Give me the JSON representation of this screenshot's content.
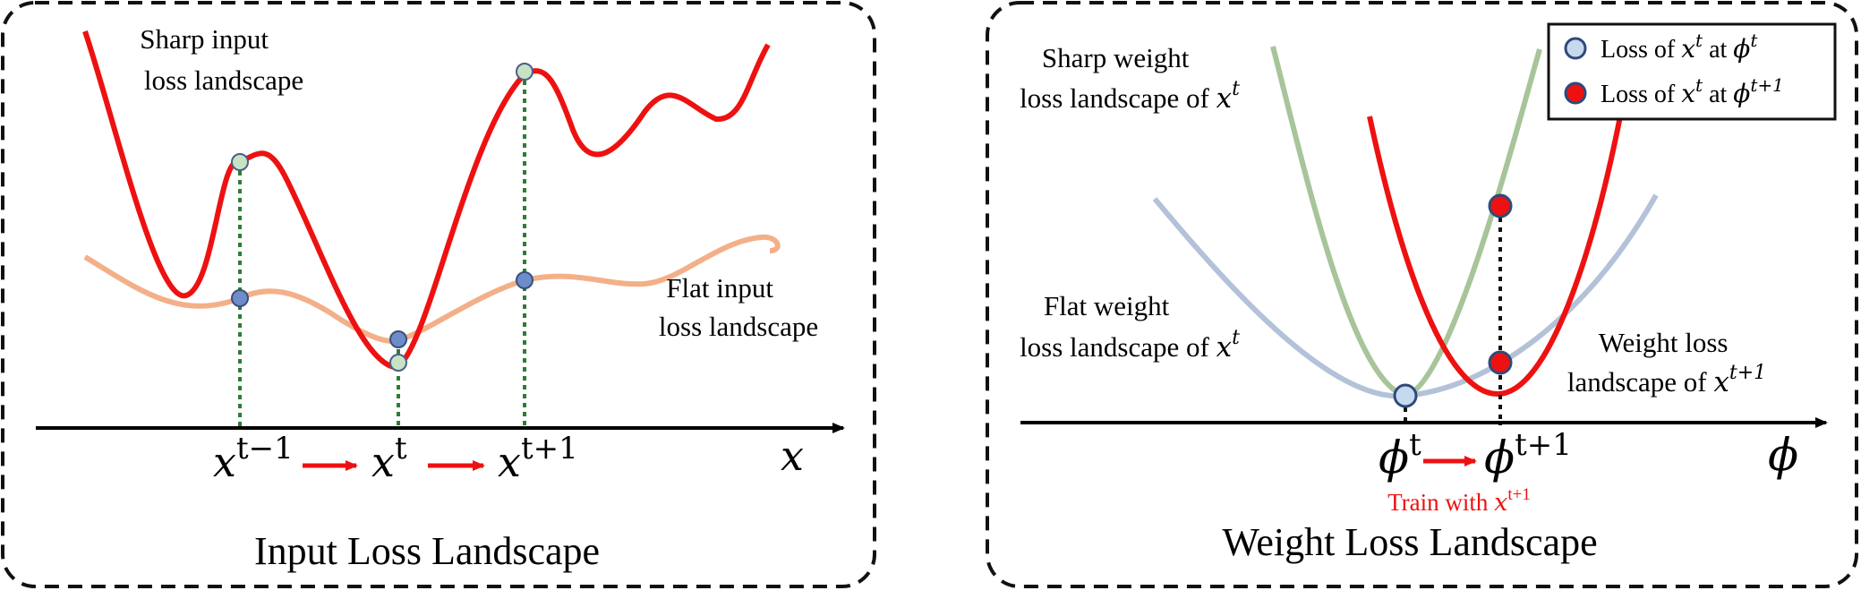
{
  "left_panel": {
    "title": "Input Loss Landscape",
    "sharp_label": [
      "Sharp input",
      "loss landscape"
    ],
    "flat_label": [
      "Flat input",
      "loss landscape"
    ],
    "axis_var": "x",
    "ticks": [
      {
        "base": "x",
        "sup": "t−1"
      },
      {
        "base": "x",
        "sup": "t"
      },
      {
        "base": "x",
        "sup": "t+1"
      }
    ],
    "colors": {
      "sharp": "#ee1111",
      "flat": "#f3b088",
      "guide": "#2e7d32",
      "point_sharp": "#c7e3c4",
      "point_flat": "#6d8cc9"
    }
  },
  "right_panel": {
    "title": "Weight Loss Landscape",
    "sharp_label": {
      "text": "Sharp weight",
      "line2": "loss landscape of ",
      "var": "x",
      "sup": "t"
    },
    "flat_label": {
      "text": "Flat weight",
      "line2": "loss landscape of ",
      "var": "x",
      "sup": "t"
    },
    "weight_label": {
      "text": "Weight loss",
      "line2": "landscape of ",
      "var": "x",
      "sup": "t+1"
    },
    "axis_var": "ϕ",
    "ticks": [
      {
        "base": "ϕ",
        "sup": "t"
      },
      {
        "base": "ϕ",
        "sup": "t+1"
      }
    ],
    "train_note": {
      "text": "Train with ",
      "var": "x",
      "sup": "t+1"
    },
    "legend": [
      {
        "prefix": "Loss of ",
        "var1": "x",
        "sup1": "t",
        "mid": " at ",
        "var2": "ϕ",
        "sup2": "t",
        "marker": "light-blue-circle"
      },
      {
        "prefix": "Loss of ",
        "var1": "x",
        "sup1": "t",
        "mid": " at ",
        "var2": "ϕ",
        "sup2": "t+1",
        "marker": "red-circle"
      }
    ],
    "colors": {
      "sharp": "#a8c49a",
      "flat": "#b3c2d8",
      "weight": "#ee1111",
      "point_light": "#c5d9ef",
      "point_red": "#ee1111"
    }
  }
}
